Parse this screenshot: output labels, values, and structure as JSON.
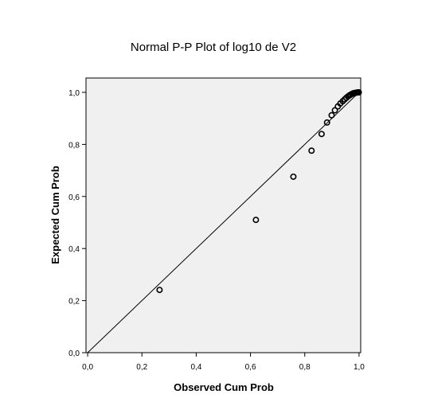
{
  "chart_data": {
    "type": "scatter",
    "title": "Normal P-P Plot of log10 de V2",
    "xlabel": "Observed Cum Prob",
    "ylabel": "Expected Cum Prob",
    "xlim": [
      0,
      1
    ],
    "ylim": [
      0,
      1
    ],
    "xticks": [
      "0,0",
      "0,2",
      "0,4",
      "0,6",
      "0,8",
      "1,0"
    ],
    "yticks": [
      "0,0",
      "0,2",
      "0,4",
      "0,6",
      "0,8",
      "1,0"
    ],
    "grid": false,
    "legend": "none",
    "reference_line": {
      "from": [
        0,
        0
      ],
      "to": [
        1,
        1
      ]
    },
    "colors": {
      "plot_background": "#f0f0f0",
      "page_background": "#ffffff",
      "axis": "#000000",
      "marker": "#000000",
      "reference_line": "#000000"
    },
    "marker": "circle-open",
    "series": [
      {
        "points": [
          {
            "x": 0.265,
            "y": 0.241
          },
          {
            "x": 0.62,
            "y": 0.51
          },
          {
            "x": 0.758,
            "y": 0.676
          },
          {
            "x": 0.825,
            "y": 0.776
          },
          {
            "x": 0.862,
            "y": 0.84
          },
          {
            "x": 0.882,
            "y": 0.884
          },
          {
            "x": 0.899,
            "y": 0.912
          },
          {
            "x": 0.911,
            "y": 0.931
          },
          {
            "x": 0.922,
            "y": 0.946
          },
          {
            "x": 0.931,
            "y": 0.957
          },
          {
            "x": 0.94,
            "y": 0.966
          },
          {
            "x": 0.947,
            "y": 0.973
          },
          {
            "x": 0.953,
            "y": 0.979
          },
          {
            "x": 0.959,
            "y": 0.984
          },
          {
            "x": 0.964,
            "y": 0.988
          },
          {
            "x": 0.969,
            "y": 0.991
          },
          {
            "x": 0.974,
            "y": 0.994
          },
          {
            "x": 0.978,
            "y": 0.996
          },
          {
            "x": 0.982,
            "y": 0.997
          },
          {
            "x": 0.986,
            "y": 0.998
          },
          {
            "x": 0.99,
            "y": 0.999
          },
          {
            "x": 0.994,
            "y": 0.9995
          },
          {
            "x": 0.997,
            "y": 0.9998
          },
          {
            "x": 0.999,
            "y": 1.0
          }
        ]
      }
    ]
  }
}
